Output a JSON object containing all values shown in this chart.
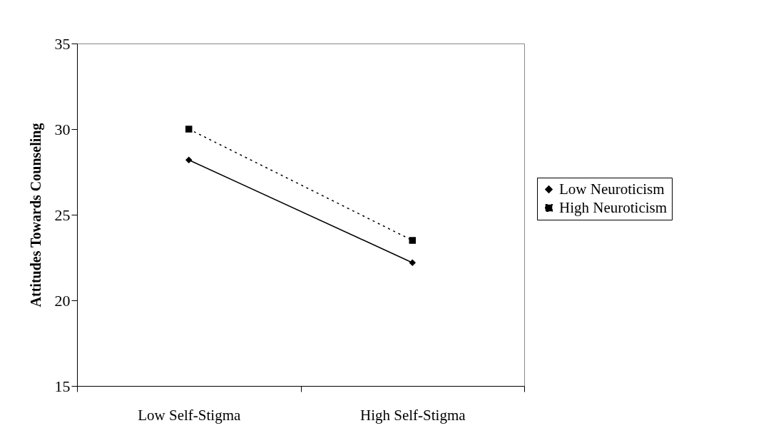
{
  "chart_data": {
    "type": "line",
    "ylabel": "Attitudes Towards Counseling",
    "categories": [
      "Low Self-Stigma",
      "High Self-Stigma"
    ],
    "ylim": [
      15,
      35
    ],
    "yticks": [
      15,
      20,
      25,
      30,
      35
    ],
    "grid": false,
    "legend": "right",
    "series": [
      {
        "name": "Low Neuroticism",
        "color": "#000000",
        "values": [
          28.2,
          22.2
        ],
        "marker": "diamond",
        "line_style": "solid"
      },
      {
        "name": "High Neuroticism",
        "color": "#000000",
        "values": [
          30.0,
          23.5
        ],
        "marker": "square",
        "line_style": "dotted"
      }
    ]
  }
}
